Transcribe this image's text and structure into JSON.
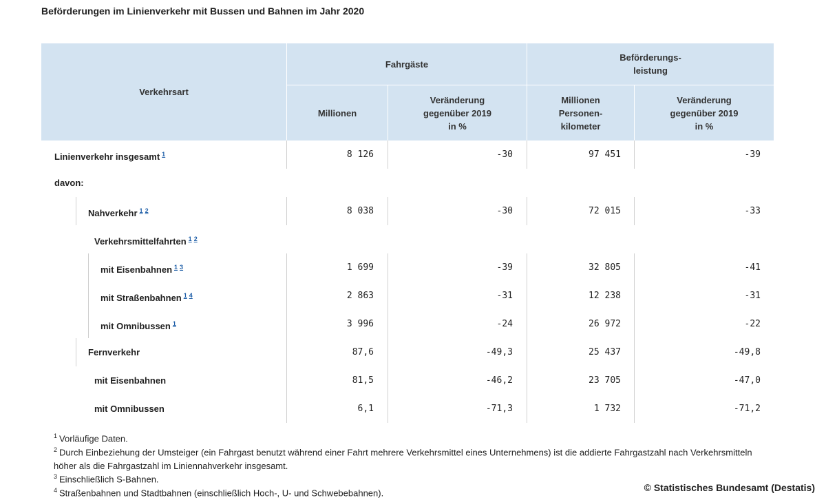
{
  "title": "Beförderungen im Linienverkehr mit Bussen und Bahnen im Jahr 2020",
  "table": {
    "header": {
      "verkehrsart": "Verkehrsart",
      "fahrgaeste": "Fahrgäste",
      "leistung": "Beförderungs-\nleistung",
      "columns": [
        "Millionen",
        "Veränderung\ngegenüber 2019\nin %",
        "Millionen\nPersonen-\nkilometer",
        "Veränderung\ngegenüber 2019\nin %"
      ]
    },
    "rows": [
      {
        "label": "Linienverkehr insgesamt",
        "refs": [
          "1"
        ],
        "values": [
          "8 126",
          "-30",
          "97 451",
          "-39"
        ]
      },
      {
        "label": "davon:"
      },
      {
        "label": "Nahverkehr",
        "refs": [
          "1",
          "2"
        ],
        "values": [
          "8 038",
          "-30",
          "72 015",
          "-33"
        ]
      },
      {
        "label": "Verkehrsmittelfahrten",
        "refs": [
          "1",
          "2"
        ]
      },
      {
        "label": "mit Eisenbahnen",
        "refs": [
          "1",
          "3"
        ],
        "values": [
          "1 699",
          "-39",
          "32 805",
          "-41"
        ]
      },
      {
        "label": "mit Straßenbahnen",
        "refs": [
          "1",
          "4"
        ],
        "values": [
          "2 863",
          "-31",
          "12 238",
          "-31"
        ]
      },
      {
        "label": "mit Omnibussen",
        "refs": [
          "1"
        ],
        "values": [
          "3 996",
          "-24",
          "26 972",
          "-22"
        ]
      },
      {
        "label": "Fernverkehr",
        "values": [
          "87,6",
          "-49,3",
          "25 437",
          "-49,8"
        ]
      },
      {
        "label": "mit Eisenbahnen",
        "values": [
          "81,5",
          "-46,2",
          "23 705",
          "-47,0"
        ]
      },
      {
        "label": "mit Omnibussen",
        "values": [
          "6,1",
          "-71,3",
          "1 732",
          "-71,2"
        ]
      }
    ]
  },
  "footnotes": [
    {
      "number": "1",
      "text": "Vorläufige Daten."
    },
    {
      "number": "2",
      "text": "Durch Einbeziehung der Umsteiger (ein Fahrgast benutzt während einer Fahrt mehrere Verkehrsmittel eines Unternehmens) ist die addierte Fahrgastzahl nach Verkehrsmitteln höher als die Fahrgastzahl im Liniennahverkehr insgesamt."
    },
    {
      "number": "3",
      "text": "Einschließlich S-Bahnen."
    },
    {
      "number": "4",
      "text": "Straßenbahnen und Stadtbahnen (einschließlich Hoch-, U- und Schwebebahnen)."
    }
  ],
  "copyright": "© Statistisches Bundesamt (Destatis)"
}
